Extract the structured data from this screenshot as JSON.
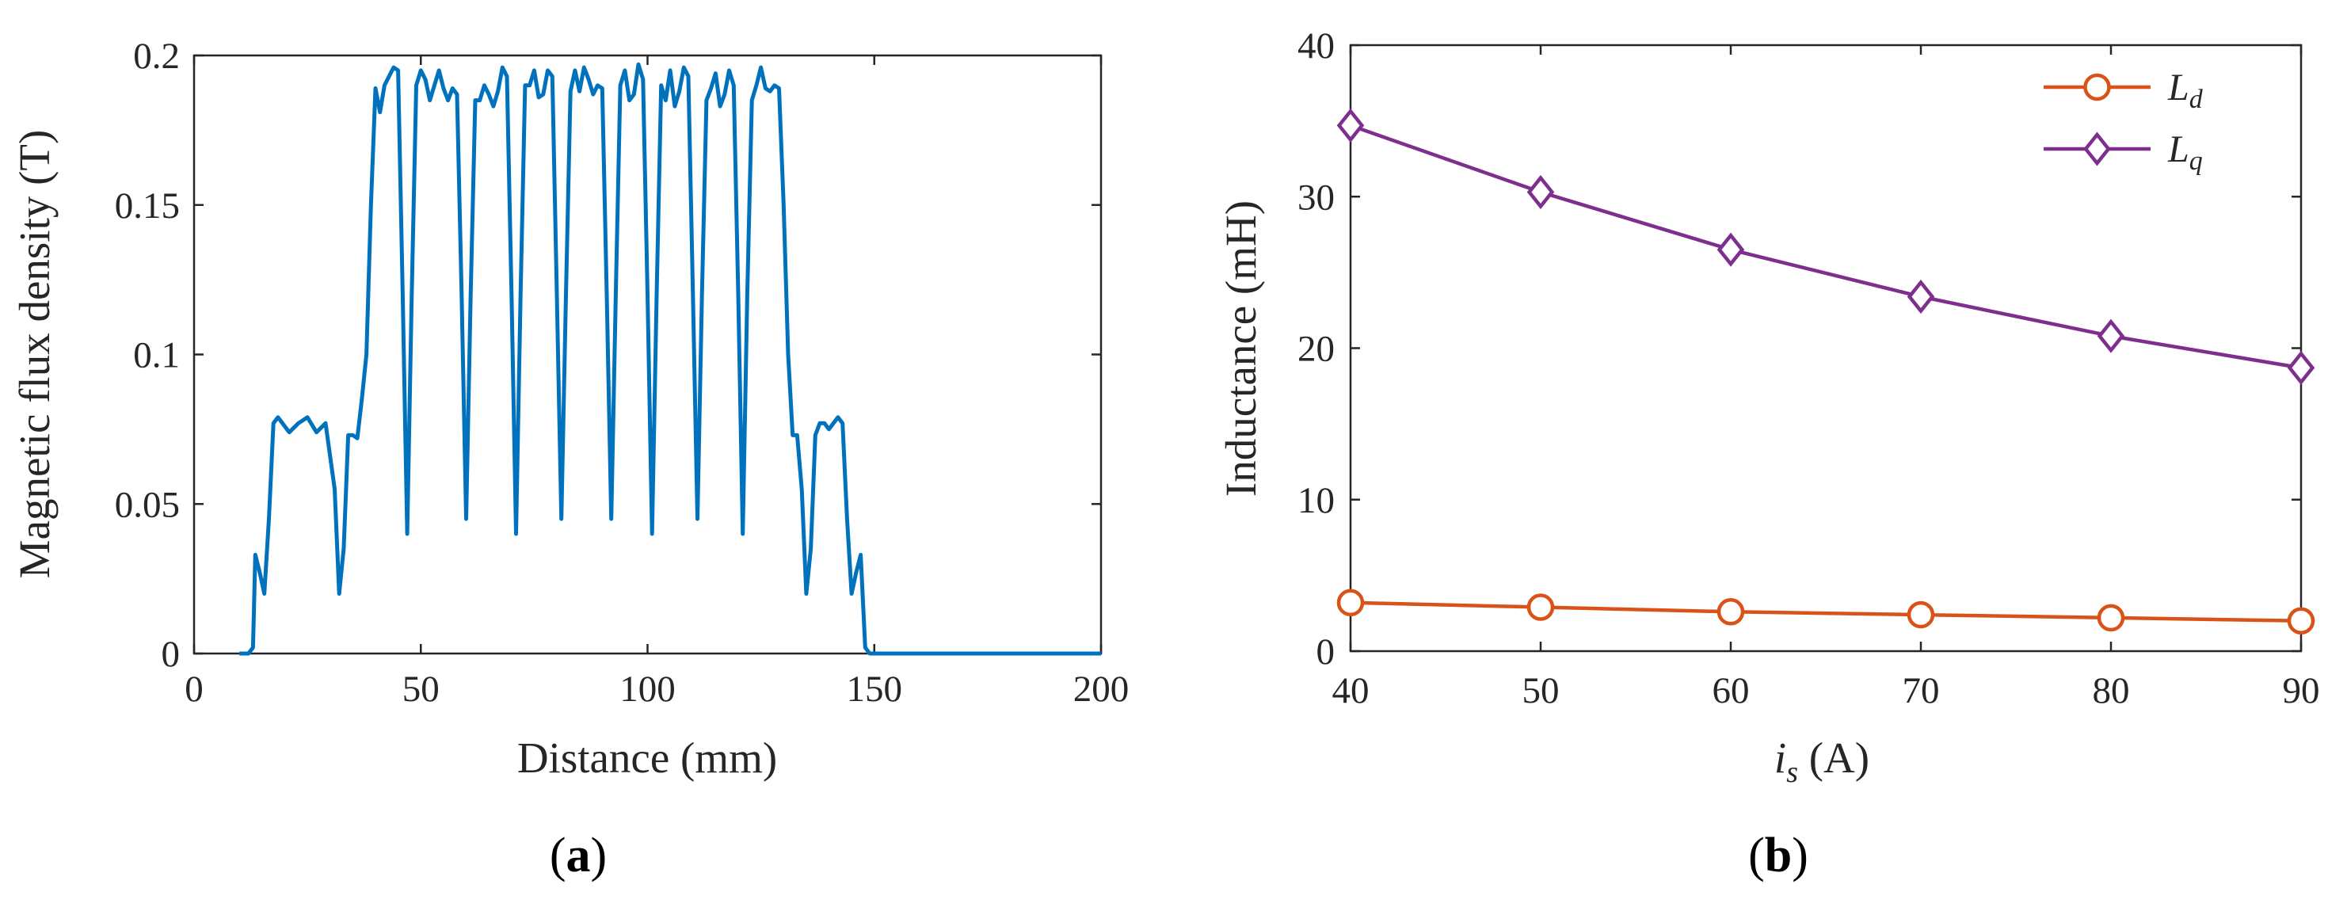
{
  "chart_data": [
    {
      "type": "line",
      "panel_label": "a",
      "xlabel": "Distance (mm)",
      "ylabel": "Magnetic flux density (T)",
      "xlim": [
        0,
        200
      ],
      "ylim": [
        0,
        0.2
      ],
      "xticks": [
        0,
        50,
        100,
        150,
        200
      ],
      "yticks": [
        0,
        0.05,
        0.1,
        0.15,
        0.2
      ],
      "xtick_labels": [
        "0",
        "50",
        "100",
        "150",
        "200"
      ],
      "ytick_labels": [
        "0",
        "0.05",
        "0.1",
        "0.15",
        "0.2"
      ],
      "color": "#0072BD",
      "series": [
        {
          "name": "B",
          "x": [
            10,
            12,
            13,
            13.5,
            14.5,
            15.5,
            16.5,
            17.5,
            18.5,
            19.5,
            21,
            23,
            25,
            27,
            29,
            31,
            32,
            33,
            34,
            35,
            36,
            37,
            38,
            39,
            40,
            41,
            42,
            43,
            44,
            45,
            46,
            47,
            48,
            49,
            50,
            51,
            52,
            53,
            54,
            55,
            56,
            57,
            58,
            59,
            60,
            61,
            62,
            63,
            64,
            65,
            66,
            67,
            68,
            69,
            70,
            71,
            72,
            73,
            74,
            75,
            76,
            77,
            78,
            79,
            80,
            81,
            82,
            83,
            84,
            85,
            86,
            87,
            88,
            89,
            90,
            91,
            92,
            93,
            94,
            95,
            96,
            97,
            98,
            99,
            100,
            101,
            102,
            103,
            104,
            105,
            106,
            107,
            108,
            109,
            110,
            111,
            112,
            113,
            114,
            115,
            116,
            117,
            118,
            119,
            120,
            121,
            122,
            123,
            124,
            125,
            126,
            127,
            128,
            129,
            130,
            131,
            132,
            133,
            134,
            135,
            136,
            137,
            138,
            139,
            140,
            141,
            142,
            143,
            144,
            145,
            146,
            147,
            148,
            149,
            150,
            151,
            152,
            153,
            154,
            155,
            156,
            157,
            158,
            159,
            160,
            161,
            162,
            164,
            166,
            168,
            170,
            172,
            173,
            174,
            175,
            176,
            177,
            178,
            179,
            180,
            185,
            190,
            195,
            200
          ],
          "y": [
            0,
            0,
            0.002,
            0.033,
            0.027,
            0.02,
            0.045,
            0.077,
            0.079,
            0.077,
            0.074,
            0.077,
            0.079,
            0.074,
            0.077,
            0.055,
            0.02,
            0.035,
            0.073,
            0.073,
            0.072,
            0.085,
            0.1,
            0.15,
            0.189,
            0.181,
            0.19,
            0.193,
            0.196,
            0.195,
            0.12,
            0.04,
            0.12,
            0.19,
            0.195,
            0.192,
            0.185,
            0.19,
            0.195,
            0.189,
            0.185,
            0.189,
            0.187,
            0.12,
            0.045,
            0.12,
            0.185,
            0.185,
            0.19,
            0.187,
            0.183,
            0.188,
            0.196,
            0.193,
            0.12,
            0.04,
            0.12,
            0.19,
            0.19,
            0.195,
            0.186,
            0.187,
            0.195,
            0.193,
            0.12,
            0.045,
            0.12,
            0.188,
            0.195,
            0.188,
            0.196,
            0.192,
            0.187,
            0.19,
            0.189,
            0.12,
            0.045,
            0.12,
            0.19,
            0.195,
            0.185,
            0.187,
            0.197,
            0.192,
            0.12,
            0.04,
            0.12,
            0.19,
            0.185,
            0.195,
            0.183,
            0.188,
            0.196,
            0.193,
            0.12,
            0.045,
            0.12,
            0.185,
            0.189,
            0.194,
            0.183,
            0.187,
            0.195,
            0.19,
            0.12,
            0.04,
            0.12,
            0.185,
            0.19,
            0.196,
            0.189,
            0.188,
            0.19,
            0.189,
            0.15,
            0.1,
            0.073,
            0.073,
            0.055,
            0.02,
            0.035,
            0.073,
            0.077,
            0.077,
            0.075,
            0.077,
            0.079,
            0.077,
            0.045,
            0.02,
            0.027,
            0.033,
            0.002,
            0.0,
            0.0,
            0.0,
            0.0,
            0.0,
            0.0,
            0.0,
            0.0,
            0.0,
            0.0,
            0.0,
            0.0,
            0.0,
            0.0,
            0.0,
            0.0,
            0.0,
            0.0,
            0.0,
            0.0,
            0.0,
            0.0,
            0.0,
            0.0,
            0.0,
            0.0,
            0.0,
            0.0,
            0.0,
            0.0,
            0.0
          ]
        }
      ]
    },
    {
      "type": "line",
      "panel_label": "b",
      "xlabel_main": "i",
      "xlabel_sub": "s",
      "xlabel_unit": " (A)",
      "ylabel": "Inductance (mH)",
      "xlim": [
        40,
        90
      ],
      "ylim": [
        0,
        40
      ],
      "xticks": [
        40,
        50,
        60,
        70,
        80,
        90
      ],
      "yticks": [
        0,
        10,
        20,
        30,
        40
      ],
      "xtick_labels": [
        "40",
        "50",
        "60",
        "70",
        "80",
        "90"
      ],
      "ytick_labels": [
        "0",
        "10",
        "20",
        "30",
        "40"
      ],
      "legend_position": "top-right",
      "x": [
        40,
        50,
        60,
        70,
        80,
        90
      ],
      "series": [
        {
          "name": "L",
          "sub": "d",
          "marker": "circle",
          "color": "#D95319",
          "values": [
            3.2,
            2.9,
            2.6,
            2.4,
            2.2,
            2.0
          ]
        },
        {
          "name": "L",
          "sub": "q",
          "marker": "diamond",
          "color": "#7E2F8E",
          "values": [
            34.7,
            30.3,
            26.5,
            23.4,
            20.8,
            18.7
          ]
        }
      ]
    }
  ]
}
